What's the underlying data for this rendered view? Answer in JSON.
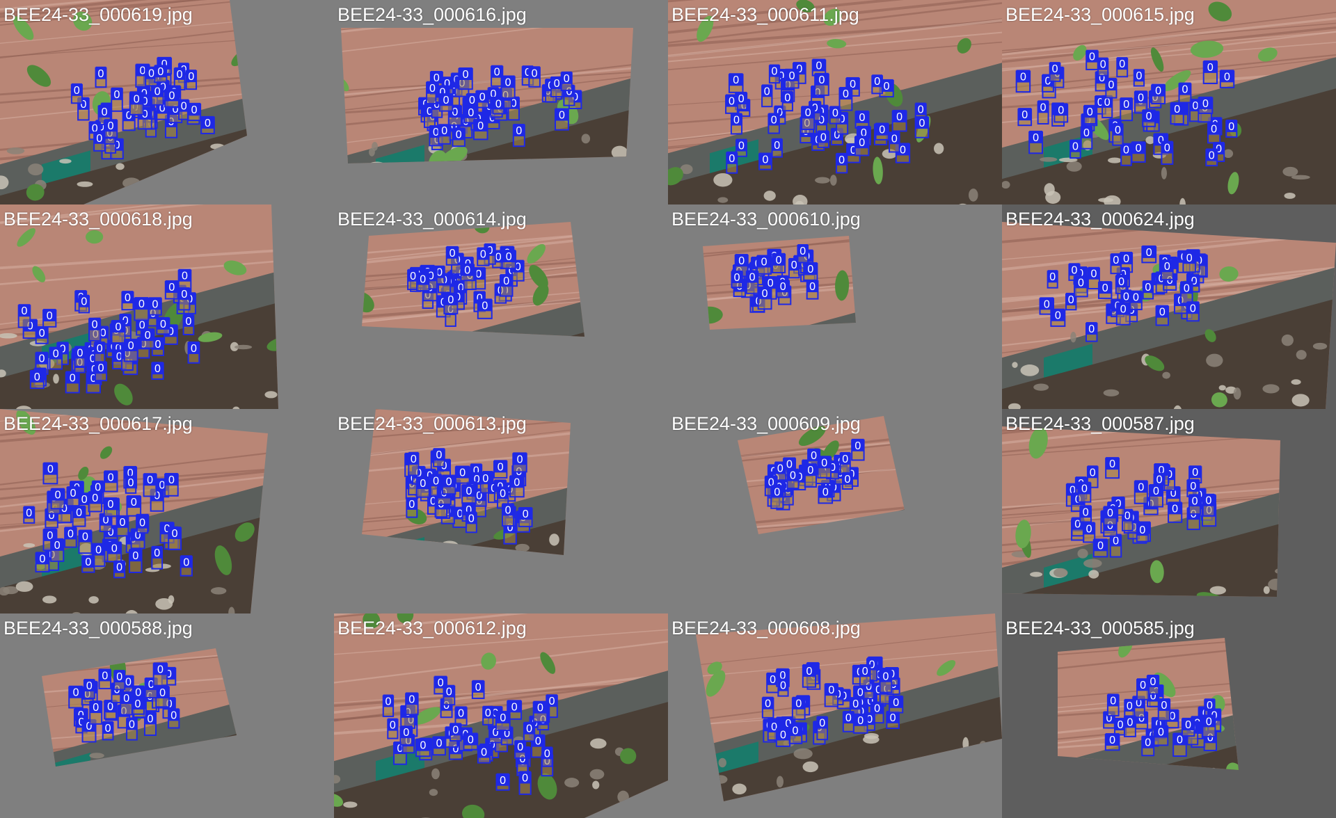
{
  "mosaic": {
    "label": "0",
    "box_color": "#1e28e6",
    "tiles": [
      {
        "filename": "BEE24-33_000619.jpg",
        "boxes": 52
      },
      {
        "filename": "BEE24-33_000616.jpg",
        "boxes": 50
      },
      {
        "filename": "BEE24-33_000611.jpg",
        "boxes": 48
      },
      {
        "filename": "BEE24-33_000615.jpg",
        "boxes": 50
      },
      {
        "filename": "BEE24-33_000618.jpg",
        "boxes": 56
      },
      {
        "filename": "BEE24-33_000614.jpg",
        "boxes": 38
      },
      {
        "filename": "BEE24-33_000610.jpg",
        "boxes": 30
      },
      {
        "filename": "BEE24-33_000624.jpg",
        "boxes": 44
      },
      {
        "filename": "BEE24-33_000617.jpg",
        "boxes": 50
      },
      {
        "filename": "BEE24-33_000613.jpg",
        "boxes": 48
      },
      {
        "filename": "BEE24-33_000609.jpg",
        "boxes": 34
      },
      {
        "filename": "BEE24-33_000587.jpg",
        "boxes": 42
      },
      {
        "filename": "BEE24-33_000588.jpg",
        "boxes": 34
      },
      {
        "filename": "BEE24-33_000612.jpg",
        "boxes": 46
      },
      {
        "filename": "BEE24-33_000608.jpg",
        "boxes": 46
      },
      {
        "filename": "BEE24-33_000585.jpg",
        "boxes": 30
      }
    ]
  }
}
